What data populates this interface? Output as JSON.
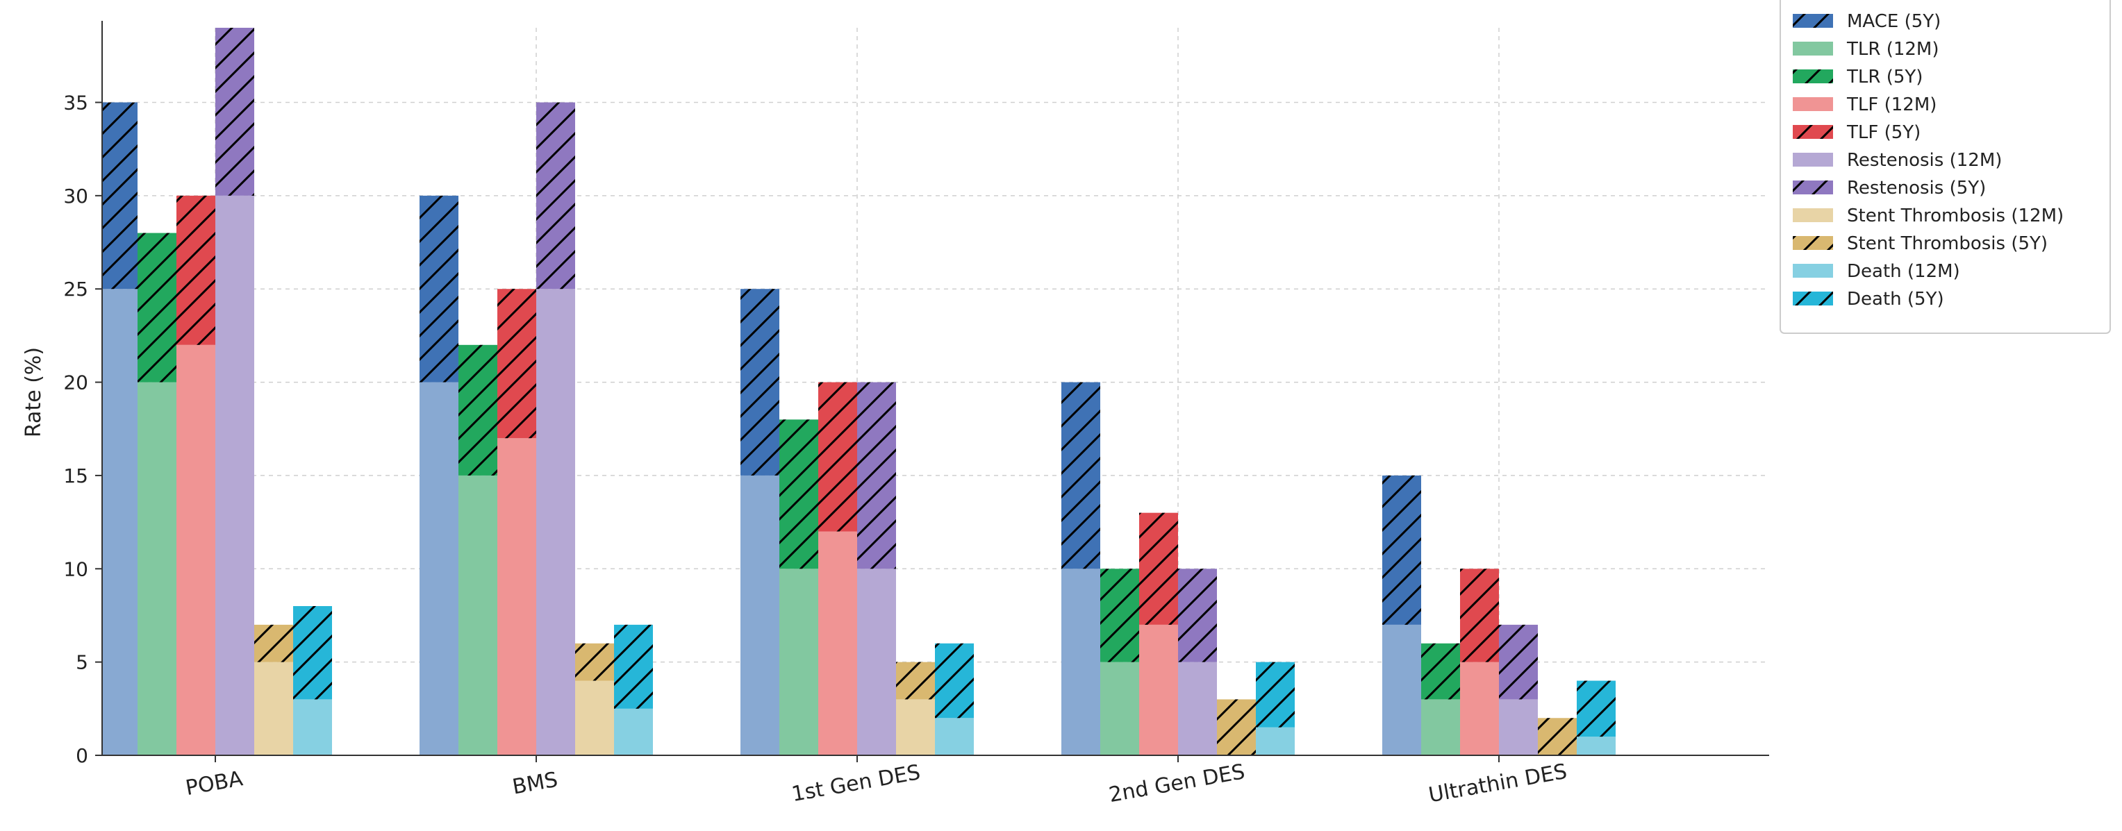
{
  "chart_data": {
    "type": "bar",
    "ylabel": "Rate (%)",
    "xlabel": "",
    "ylim": [
      0,
      39
    ],
    "yticks": [
      0,
      5,
      10,
      15,
      20,
      25,
      30,
      35
    ],
    "grid": true,
    "legend_position": "top-right",
    "categories": [
      "POBA",
      "BMS",
      "1st Gen DES",
      "2nd Gen DES",
      "Ultrathin DES"
    ],
    "groups": [
      {
        "name": "MACE",
        "color_12m": "#88a9d2",
        "color_5y": "#3f72b5",
        "values_12m": [
          25,
          20,
          15,
          10,
          7
        ],
        "values_5y": [
          35,
          30,
          25,
          20,
          15
        ]
      },
      {
        "name": "TLR",
        "color_12m": "#82c8a0",
        "color_5y": "#22a85e",
        "values_12m": [
          20,
          15,
          10,
          5,
          3
        ],
        "values_5y": [
          28,
          22,
          18,
          10,
          6
        ]
      },
      {
        "name": "TLF",
        "color_12m": "#f09494",
        "color_5y": "#e0494f",
        "values_12m": [
          22,
          17,
          12,
          7,
          5
        ],
        "values_5y": [
          30,
          25,
          20,
          13,
          10
        ]
      },
      {
        "name": "Restenosis",
        "color_12m": "#b5a8d4",
        "color_5y": "#8f78c0",
        "values_12m": [
          30,
          25,
          10,
          5,
          3
        ],
        "values_5y": [
          39,
          35,
          20,
          10,
          7
        ]
      },
      {
        "name": "Stent Thrombosis",
        "color_12m": "#e8d4a6",
        "color_5y": "#d9b870",
        "values_12m": [
          5,
          4,
          3,
          0,
          0
        ],
        "values_5y": [
          7,
          6,
          5,
          3,
          2
        ]
      },
      {
        "name": "Death",
        "color_12m": "#86d0e2",
        "color_5y": "#26b6d8",
        "values_12m": [
          3,
          2.5,
          2,
          1.5,
          1
        ],
        "values_5y": [
          8,
          7,
          6,
          5,
          4
        ]
      }
    ],
    "legend": [
      {
        "label": "MACE (5Y)",
        "color": "#3f72b5",
        "hatch": true
      },
      {
        "label": "TLR (12M)",
        "color": "#82c8a0",
        "hatch": false
      },
      {
        "label": "TLR (5Y)",
        "color": "#22a85e",
        "hatch": true
      },
      {
        "label": "TLF (12M)",
        "color": "#f09494",
        "hatch": false
      },
      {
        "label": "TLF (5Y)",
        "color": "#e0494f",
        "hatch": true
      },
      {
        "label": "Restenosis (12M)",
        "color": "#b5a8d4",
        "hatch": false
      },
      {
        "label": "Restenosis (5Y)",
        "color": "#8f78c0",
        "hatch": true
      },
      {
        "label": "Stent Thrombosis (12M)",
        "color": "#e8d4a6",
        "hatch": false
      },
      {
        "label": "Stent Thrombosis (5Y)",
        "color": "#d9b870",
        "hatch": true
      },
      {
        "label": "Death (12M)",
        "color": "#86d0e2",
        "hatch": false
      },
      {
        "label": "Death (5Y)",
        "color": "#26b6d8",
        "hatch": true
      }
    ]
  }
}
